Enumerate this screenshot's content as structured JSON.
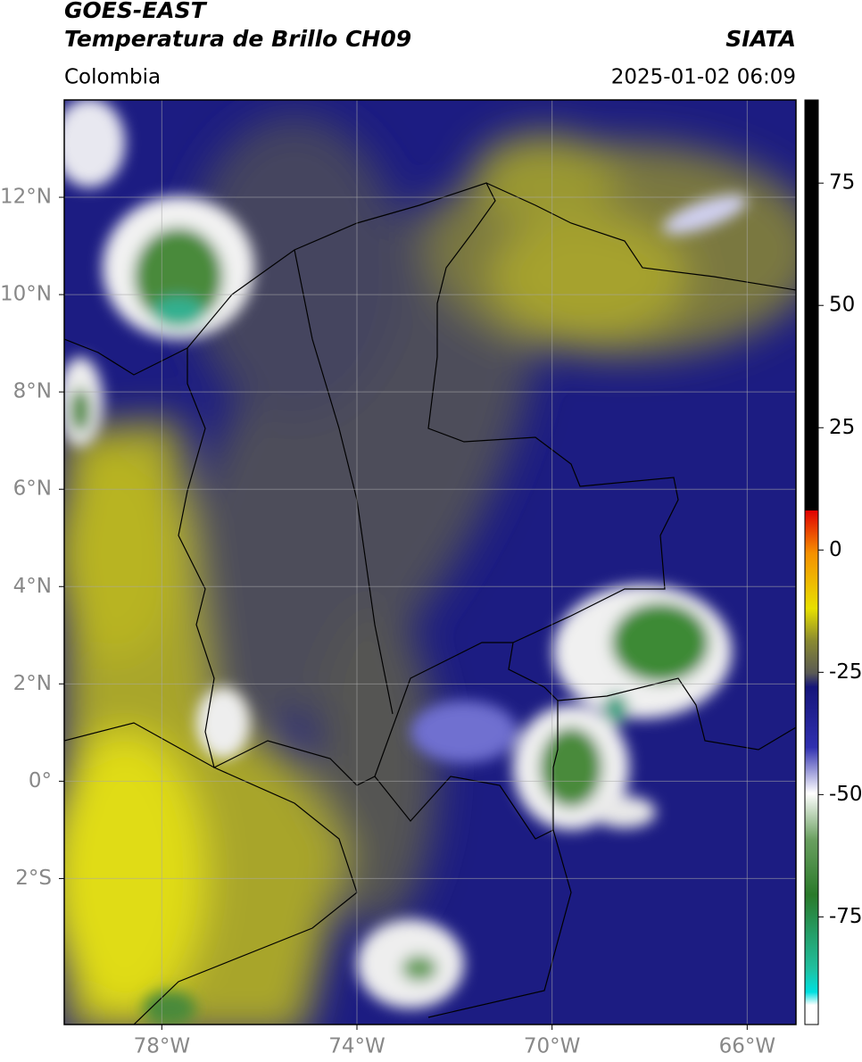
{
  "chart_data": {
    "type": "map",
    "title": "GOES-EAST",
    "subtitle": "Temperatura de Brillo CH09",
    "source": "SIATA",
    "region": "Colombia",
    "datetime": "2025-01-02 06:09",
    "xlim": [
      -80,
      -65
    ],
    "xticks": [
      {
        "value": -78,
        "label": "78°W"
      },
      {
        "value": -74,
        "label": "74°W"
      },
      {
        "value": -70,
        "label": "70°W"
      },
      {
        "value": -66,
        "label": "66°W"
      }
    ],
    "ylim": [
      -5,
      14
    ],
    "yticks": [
      {
        "value": 12,
        "label": "12°N"
      },
      {
        "value": 10,
        "label": "10°N"
      },
      {
        "value": 8,
        "label": "8°N"
      },
      {
        "value": 6,
        "label": "6°N"
      },
      {
        "value": 4,
        "label": "4°N"
      },
      {
        "value": 2,
        "label": "2°N"
      },
      {
        "value": 0,
        "label": "0°"
      },
      {
        "value": -2,
        "label": "2°S"
      }
    ],
    "grid": true,
    "colorbar": {
      "lim": [
        -97,
        92
      ],
      "ticks": [
        75,
        50,
        25,
        0,
        -25,
        -50,
        -75
      ]
    }
  }
}
